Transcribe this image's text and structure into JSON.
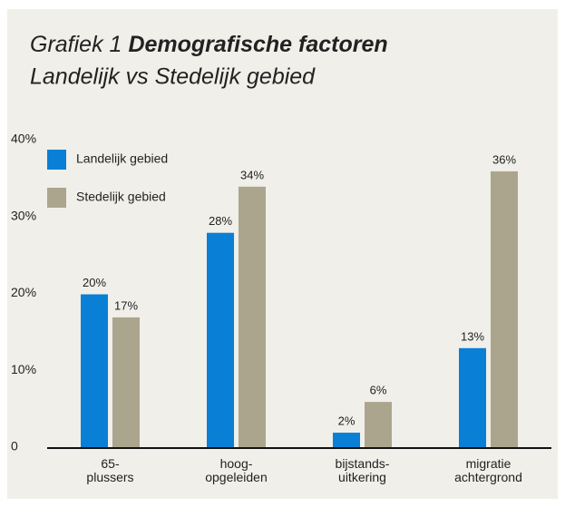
{
  "chart_data": {
    "type": "bar",
    "title_prefix": "Grafiek 1",
    "title": "Demografische factoren",
    "subtitle": "Landelijk vs Stedelijk gebied",
    "categories": [
      [
        "65-",
        "plussers"
      ],
      [
        "hoog-",
        "opgeleiden"
      ],
      [
        "bijstands-",
        "uitkering"
      ],
      [
        "migratie",
        "achtergrond"
      ]
    ],
    "series": [
      {
        "name": "Landelijk gebied",
        "color": "#0a7fd6",
        "values": [
          20,
          28,
          2,
          13
        ],
        "value_labels": [
          "20%",
          "28%",
          "2%",
          "13%"
        ]
      },
      {
        "name": "Stedelijk gebied",
        "color": "#aca58e",
        "values": [
          17,
          34,
          6,
          36
        ],
        "value_labels": [
          "17%",
          "34%",
          "6%",
          "36%"
        ]
      }
    ],
    "ylim": [
      0,
      40
    ],
    "yticks": [
      0,
      {
        "value": 10,
        "label": "10%"
      },
      {
        "value": 20,
        "label": "20%"
      },
      {
        "value": 30,
        "label": "30%"
      },
      {
        "value": 40,
        "label": "40%"
      }
    ],
    "grid": false,
    "legend": "top-left"
  }
}
